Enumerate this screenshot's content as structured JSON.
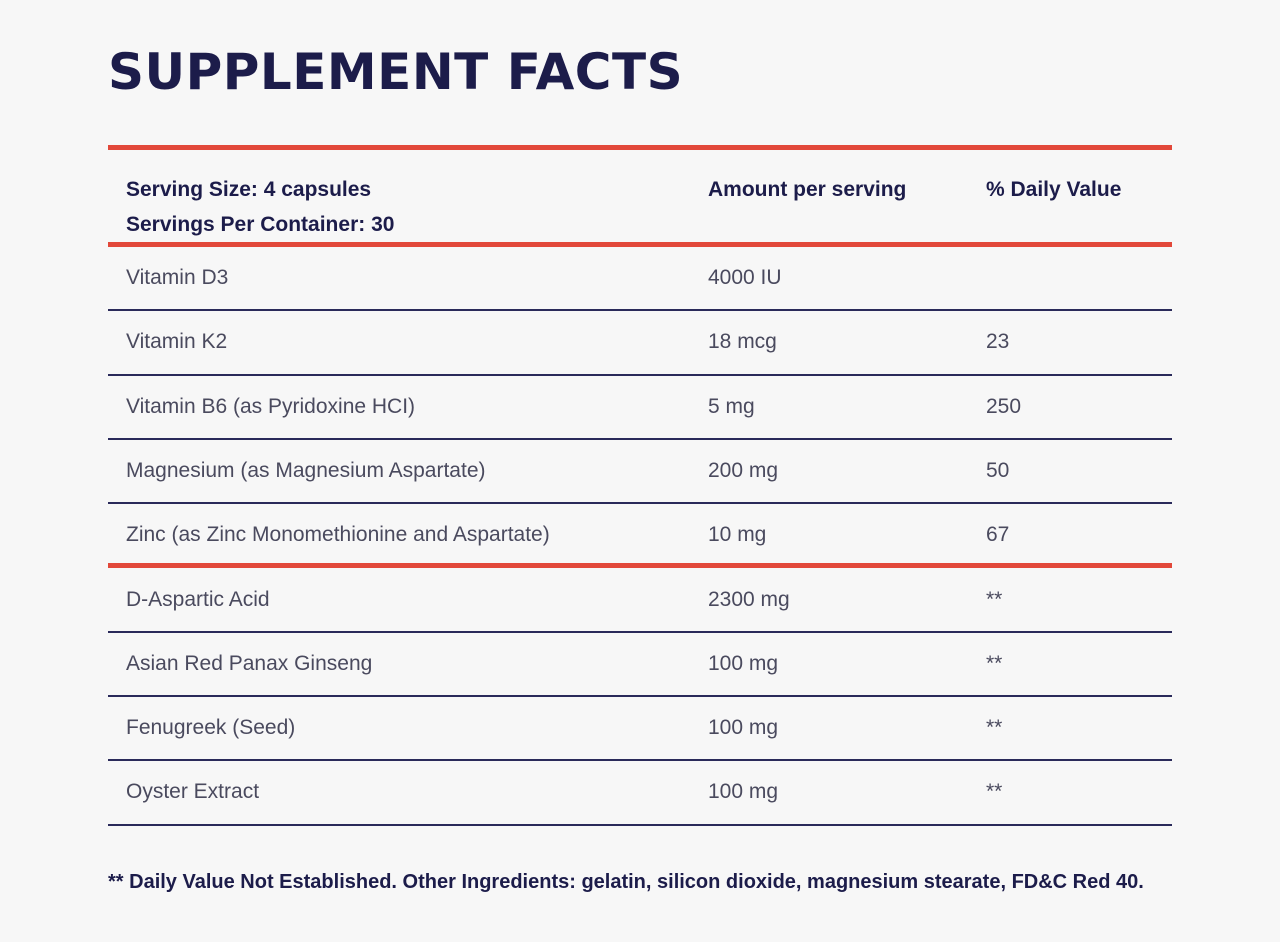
{
  "title": "SUPPLEMENT FACTS",
  "header": {
    "serving_size": "Serving Size: 4 capsules",
    "servings_per_container": "Servings Per Container: 30",
    "amount_label": "Amount per serving",
    "dv_label": "% Daily Value"
  },
  "rows": [
    {
      "name": "Vitamin D3",
      "amount": "4000 IU",
      "dv": ""
    },
    {
      "name": "Vitamin K2",
      "amount": "18 mcg",
      "dv": "23"
    },
    {
      "name": "Vitamin B6 (as Pyridoxine HCI)",
      "amount": "5 mg",
      "dv": "250"
    },
    {
      "name": "Magnesium (as Magnesium Aspartate)",
      "amount": "200 mg",
      "dv": "50"
    },
    {
      "name": "Zinc (as Zinc Monomethionine and Aspartate)",
      "amount": "10 mg",
      "dv": "67"
    },
    {
      "name": "D-Aspartic Acid",
      "amount": "2300 mg",
      "dv": "**"
    },
    {
      "name": "Asian Red Panax Ginseng",
      "amount": "100 mg",
      "dv": "**"
    },
    {
      "name": "Fenugreek (Seed)",
      "amount": "100 mg",
      "dv": "**"
    },
    {
      "name": "Oyster Extract",
      "amount": "100 mg",
      "dv": "**"
    }
  ],
  "footnote": "** Daily Value Not Established. Other Ingredients: gelatin, silicon dioxide, magnesium stearate, FD&C Red 40.",
  "colors": {
    "accent_red": "#e2483a",
    "navy": "#1c1c4a"
  }
}
